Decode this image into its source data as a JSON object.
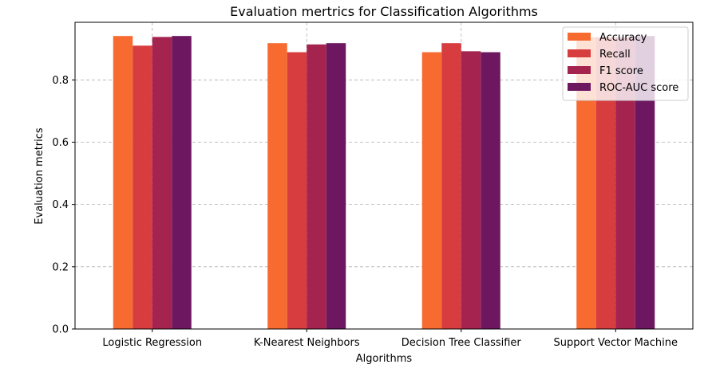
{
  "chart_data": {
    "type": "bar",
    "title": "Evaluation mertrics for Classification Algorithms",
    "xlabel": "Algorithms",
    "ylabel": "Evaluation metrics",
    "categories": [
      "Logistic Regression",
      "K-Nearest Neighbors",
      "Decision Tree Classifier",
      "Support Vector Machine"
    ],
    "series": [
      {
        "name": "Accuracy",
        "color": "#f76a30",
        "values": [
          0.941,
          0.918,
          0.889,
          0.937
        ]
      },
      {
        "name": "Recall",
        "color": "#d73c3e",
        "values": [
          0.91,
          0.889,
          0.918,
          0.937
        ]
      },
      {
        "name": "F1 score",
        "color": "#a4244f",
        "values": [
          0.938,
          0.914,
          0.892,
          0.937
        ]
      },
      {
        "name": "ROC-AUC score",
        "color": "#6c1760",
        "values": [
          0.941,
          0.918,
          0.889,
          0.941
        ]
      }
    ],
    "ylim": [
      0,
      0.985
    ],
    "yticks": [
      "0.0",
      "0.2",
      "0.4",
      "0.6",
      "0.8"
    ],
    "ytick_values": [
      0,
      0.2,
      0.4,
      0.6,
      0.8
    ],
    "grid": true,
    "legend_position": "top-right"
  }
}
